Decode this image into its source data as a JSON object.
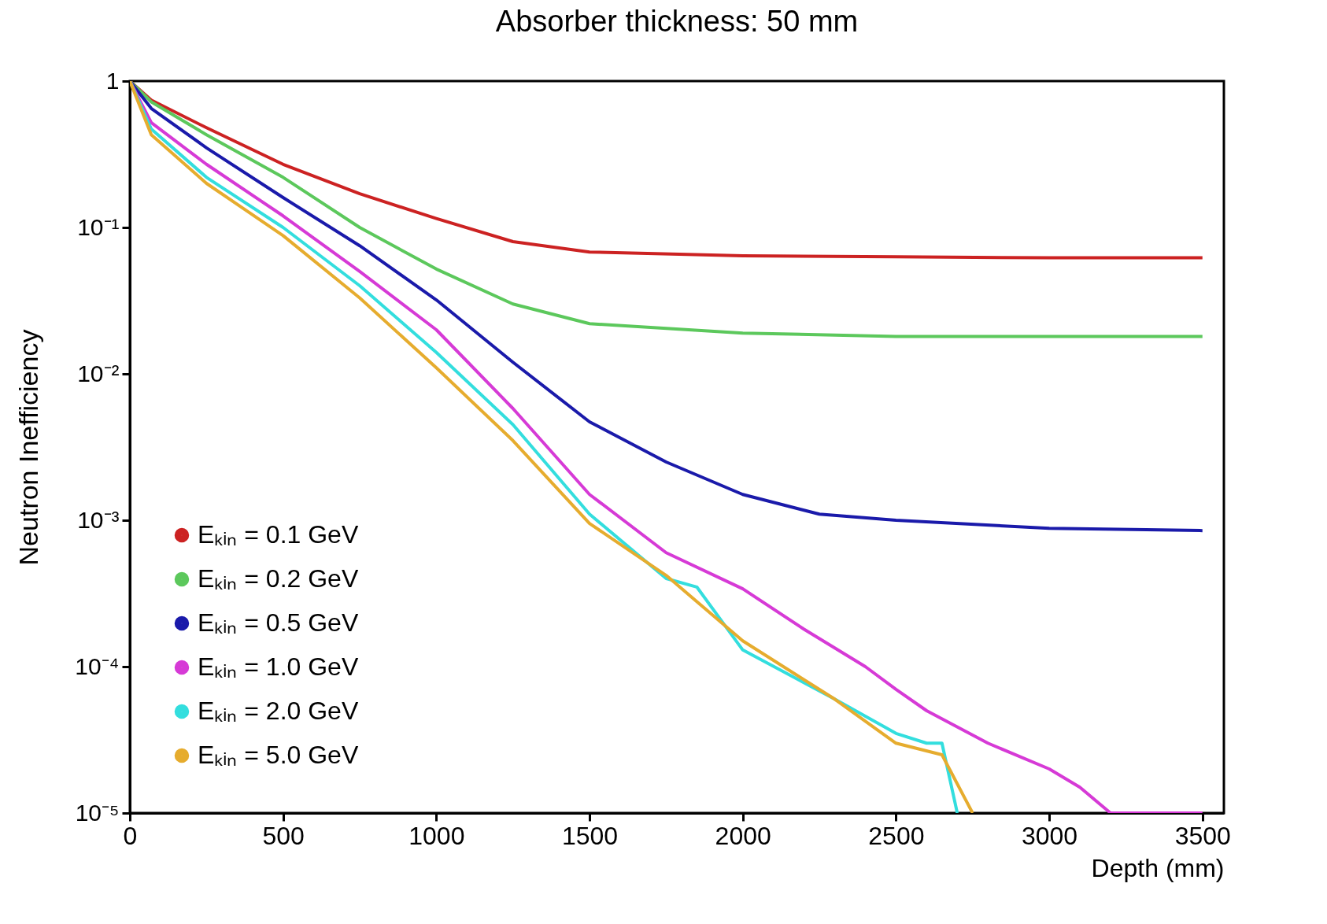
{
  "chart_data": {
    "type": "line",
    "title": "Absorber thickness: 50 mm",
    "xlabel": "Depth (mm)",
    "ylabel": "Neutron Inefficiency",
    "log": "y",
    "grid": false,
    "legend": "bottom left",
    "marker": "none",
    "line_style": "solid",
    "xlim": [
      0,
      3570
    ],
    "xticks": [
      0,
      500,
      1000,
      1500,
      2000,
      2500,
      3000,
      3500
    ],
    "ylim": [
      1e-05,
      1
    ],
    "yticks": [
      {
        "value": 1e-05,
        "label": "10⁻⁵"
      },
      {
        "value": 0.0001,
        "label": "10⁻⁴"
      },
      {
        "value": 0.001,
        "label": "10⁻³"
      },
      {
        "value": 0.01,
        "label": "10⁻²"
      },
      {
        "value": 0.1,
        "label": "10⁻¹"
      },
      1
    ],
    "series": [
      {
        "name": "Eₖᵢₙ = 0.1 GeV",
        "color": "#cc2222",
        "x": [
          0,
          70,
          250,
          500,
          750,
          1000,
          1250,
          1500,
          2000,
          2500,
          3000,
          3500
        ],
        "values": [
          1,
          0.74,
          0.48,
          0.27,
          0.17,
          0.115,
          0.08,
          0.068,
          0.064,
          0.063,
          0.062,
          0.062
        ]
      },
      {
        "name": "Eₖᵢₙ = 0.2 GeV",
        "color": "#5cc85c",
        "x": [
          0,
          70,
          250,
          500,
          750,
          1000,
          1250,
          1500,
          2000,
          2500,
          3000,
          3500
        ],
        "values": [
          1,
          0.72,
          0.43,
          0.22,
          0.1,
          0.052,
          0.03,
          0.022,
          0.019,
          0.018,
          0.018,
          0.018
        ]
      },
      {
        "name": "Eₖᵢₙ = 0.5 GeV",
        "color": "#1a1aaa",
        "x": [
          0,
          70,
          250,
          500,
          750,
          1000,
          1250,
          1500,
          1750,
          2000,
          2250,
          2500,
          3000,
          3500
        ],
        "values": [
          1,
          0.65,
          0.35,
          0.16,
          0.075,
          0.032,
          0.012,
          0.0047,
          0.0025,
          0.0015,
          0.0011,
          0.001,
          0.00088,
          0.00085
        ]
      },
      {
        "name": "Eₖᵢₙ = 1.0 GeV",
        "color": "#d63ad6",
        "x": [
          0,
          70,
          250,
          500,
          750,
          1000,
          1250,
          1500,
          1750,
          2000,
          2200,
          2400,
          2500,
          2600,
          2800,
          3000,
          3100,
          3200,
          3500
        ],
        "values": [
          1,
          0.52,
          0.27,
          0.12,
          0.05,
          0.02,
          0.0058,
          0.0015,
          0.0006,
          0.00034,
          0.00018,
          0.0001,
          7e-05,
          5e-05,
          3e-05,
          2e-05,
          1.5e-05,
          1e-05,
          1e-05
        ]
      },
      {
        "name": "Eₖᵢₙ = 2.0 GeV",
        "color": "#33dede",
        "x": [
          0,
          70,
          250,
          500,
          750,
          1000,
          1250,
          1500,
          1750,
          1850,
          2000,
          2300,
          2500,
          2600,
          2650,
          2700
        ],
        "values": [
          1,
          0.47,
          0.22,
          0.1,
          0.04,
          0.014,
          0.0045,
          0.0011,
          0.0004,
          0.00035,
          0.00013,
          6e-05,
          3.5e-05,
          3e-05,
          3e-05,
          1e-05
        ]
      },
      {
        "name": "Eₖᵢₙ = 5.0 GeV",
        "color": "#e6ac2e",
        "x": [
          0,
          70,
          250,
          500,
          750,
          1000,
          1250,
          1500,
          1750,
          2000,
          2300,
          2500,
          2650,
          2750
        ],
        "values": [
          1,
          0.43,
          0.2,
          0.088,
          0.033,
          0.011,
          0.0035,
          0.00095,
          0.00042,
          0.00015,
          6e-05,
          3e-05,
          2.5e-05,
          1e-05
        ]
      }
    ]
  }
}
